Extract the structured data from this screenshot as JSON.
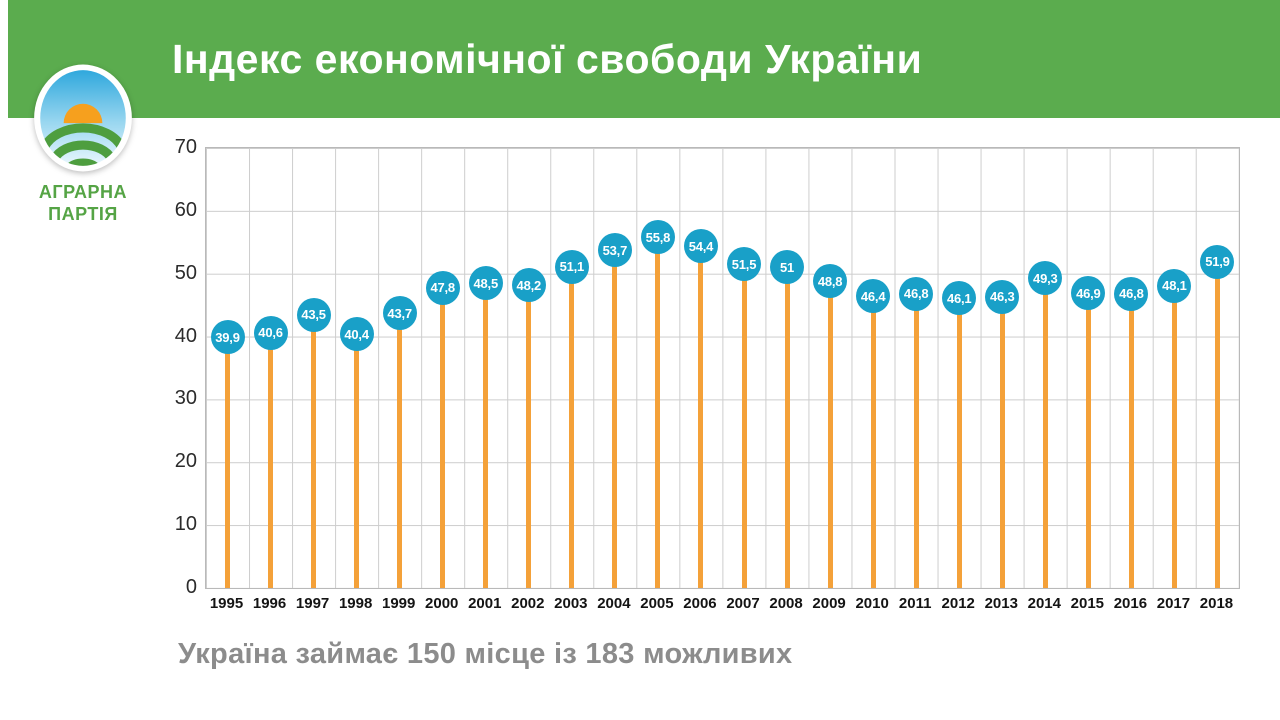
{
  "header": {
    "title": "Індекс економічної свободи України",
    "bg_color": "#5BAC4E"
  },
  "logo": {
    "org_line1": "АГРАРНА",
    "org_line2": "ПАРТІЯ",
    "text_color": "#55A445",
    "sun_color": "#F6A01E",
    "sky_color": "#2FA8DD",
    "field_color": "#4E9E3F"
  },
  "footer": {
    "caption": "Україна займає 150 місце із 183 можливих"
  },
  "chart_data": {
    "type": "bar",
    "subtype": "lollipop",
    "title": "Індекс економічної свободи України",
    "categories": [
      "1995",
      "1996",
      "1997",
      "1998",
      "1999",
      "2000",
      "2001",
      "2002",
      "2003",
      "2004",
      "2005",
      "2006",
      "2007",
      "2008",
      "2009",
      "2010",
      "2011",
      "2012",
      "2013",
      "2014",
      "2015",
      "2016",
      "2017",
      "2018"
    ],
    "values": [
      39.9,
      40.6,
      43.5,
      40.4,
      43.7,
      47.8,
      48.5,
      48.2,
      51.1,
      53.7,
      55.8,
      54.4,
      51.5,
      51,
      48.8,
      46.4,
      46.8,
      46.1,
      46.3,
      49.3,
      46.9,
      46.8,
      48.1,
      51.9
    ],
    "value_labels": [
      "39,9",
      "40,6",
      "43,5",
      "40,4",
      "43,7",
      "47,8",
      "48,5",
      "48,2",
      "51,1",
      "53,7",
      "55,8",
      "54,4",
      "51,5",
      "51",
      "48,8",
      "46,4",
      "46,8",
      "46,1",
      "46,3",
      "49,3",
      "46,9",
      "46,8",
      "48,1",
      "51,9"
    ],
    "xlabel": "",
    "ylabel": "",
    "ylim": [
      0,
      70
    ],
    "y_ticks": [
      0,
      10,
      20,
      30,
      40,
      50,
      60,
      70
    ],
    "grid": true,
    "legend": false,
    "stem_color": "#F4A139",
    "marker_color": "#19A0C8",
    "marker_label_color": "#FFFFFF"
  }
}
